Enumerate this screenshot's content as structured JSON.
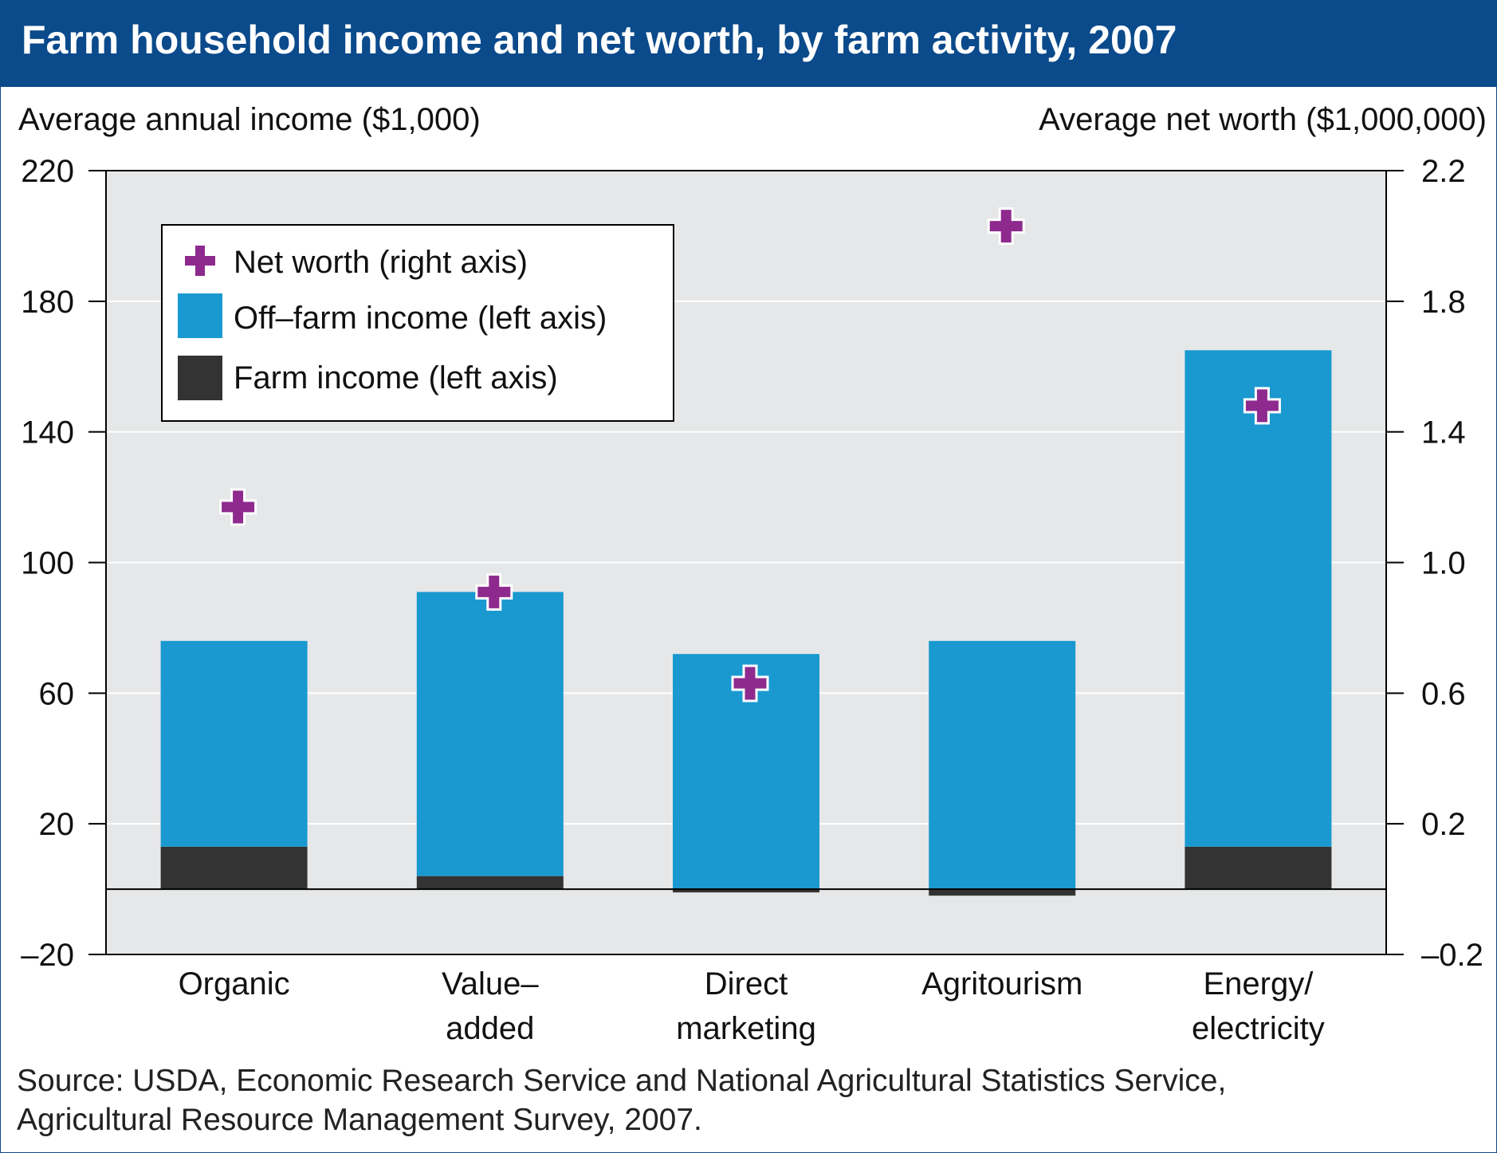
{
  "header": {
    "title": "Farm household income and net worth, by farm activity, 2007"
  },
  "source": {
    "line1": "Source: USDA, Economic Research Service and National Agricultural Statistics Service,",
    "line2": "Agricultural Resource Management Survey, 2007."
  },
  "colors": {
    "header_bg": "#0b4a8b",
    "plot_bg": "#e6e7e8",
    "off_farm": "#1a99d0",
    "farm": "#333333",
    "net_worth": "#8e2a8e"
  },
  "chart_data": {
    "type": "bar",
    "stacked": true,
    "title": "Farm household income and net worth, by farm activity, 2007",
    "categories": [
      [
        "Organic"
      ],
      [
        "Value–",
        "added"
      ],
      [
        "Direct",
        "marketing"
      ],
      [
        "Agritourism"
      ],
      [
        "Energy/",
        "electricity"
      ]
    ],
    "ylabel_left": "Average annual income ($1,000)",
    "ylabel_right": "Average net worth ($1,000,000)",
    "ylim_left": [
      -20,
      220
    ],
    "ylim_right": [
      -0.2,
      2.2
    ],
    "yticks_left": [
      "220",
      "180",
      "140",
      "100",
      "60",
      "20",
      "–20"
    ],
    "yticks_right": [
      "2.2",
      "1.8",
      "1.4",
      "1.0",
      "0.6",
      "0.2",
      "–0.2"
    ],
    "grid": true,
    "legend_position": "top-left",
    "legend": [
      "Net worth (right axis)",
      "Off–farm income (left axis)",
      "Farm income (left axis)"
    ],
    "series": [
      {
        "name": "Farm income (left axis)",
        "axis": "left",
        "values": [
          13,
          4,
          -1,
          -2,
          13
        ]
      },
      {
        "name": "Off–farm income (left axis)",
        "axis": "left",
        "values": [
          63,
          87,
          72,
          76,
          152
        ]
      },
      {
        "name": "Net worth (right axis)",
        "axis": "right",
        "kind": "marker",
        "values": [
          1.17,
          0.91,
          0.63,
          2.03,
          1.48
        ]
      }
    ]
  }
}
